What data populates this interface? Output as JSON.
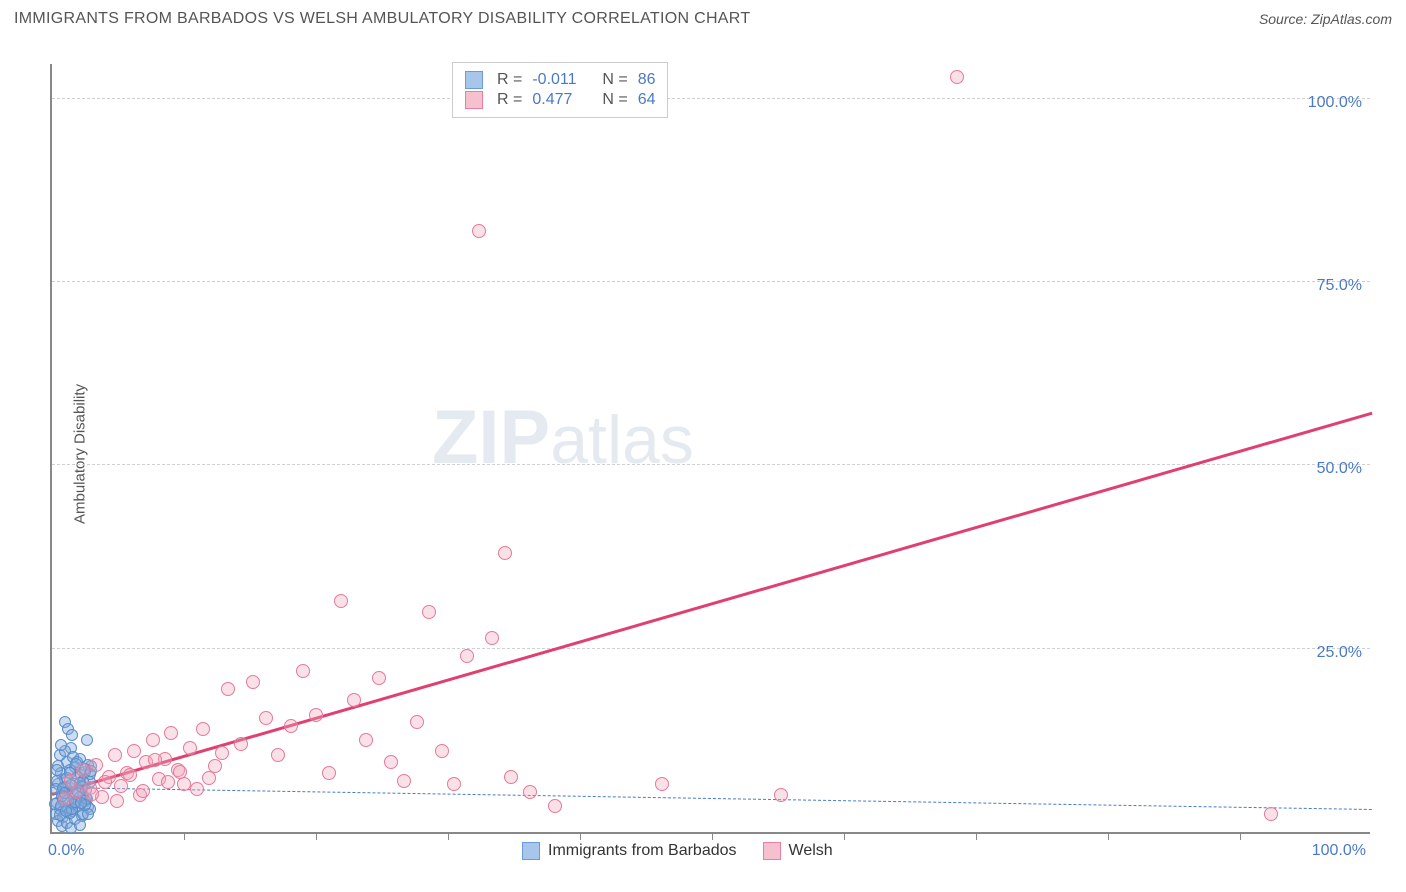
{
  "header": {
    "title": "IMMIGRANTS FROM BARBADOS VS WELSH AMBULATORY DISABILITY CORRELATION CHART",
    "source_prefix": "Source: ",
    "source": "ZipAtlas.com"
  },
  "chart": {
    "type": "scatter",
    "background_color": "#ffffff",
    "grid_color": "#d0d0d0",
    "axis_color": "#888888",
    "ylabel": "Ambulatory Disability",
    "ylabel_fontsize": 15,
    "tick_label_color": "#4a7ac7",
    "tick_fontsize": 16,
    "xlim": [
      0,
      105
    ],
    "ylim": [
      0,
      105
    ],
    "yticks": [
      25.0,
      50.0,
      75.0,
      100.0
    ],
    "ytick_labels": [
      "25.0%",
      "50.0%",
      "75.0%",
      "100.0%"
    ],
    "xtick_labels": {
      "left": "0.0%",
      "right": "100.0%"
    },
    "xticks_minor": [
      10.5,
      21,
      31.5,
      42,
      52.5,
      63,
      73.5,
      84,
      94.5
    ],
    "watermark": {
      "bold": "ZIP",
      "light": "atlas"
    },
    "legend_top": {
      "rows": [
        {
          "swatch_fill": "#a8c6ec",
          "swatch_border": "#6a9cd8",
          "r_label": "R =",
          "r_val": "-0.011",
          "n_label": "N =",
          "n_val": "86"
        },
        {
          "swatch_fill": "#f6c0ce",
          "swatch_border": "#e97fa0",
          "r_label": "R =",
          "r_val": "0.477",
          "n_label": "N =",
          "n_val": "64"
        }
      ]
    },
    "legend_bottom": [
      {
        "swatch_fill": "#a8c6ec",
        "swatch_border": "#6a9cd8",
        "label": "Immigrants from Barbados"
      },
      {
        "swatch_fill": "#f6c0ce",
        "swatch_border": "#e97fa0",
        "label": "Welsh"
      }
    ],
    "series": [
      {
        "name": "Immigrants from Barbados",
        "marker_fill": "rgba(130,170,220,0.4)",
        "marker_border": "#5a8cc8",
        "marker_size": 12,
        "trend": {
          "x1": 0,
          "y1": 6.0,
          "x2": 105,
          "y2": 3.0,
          "color": "#4a7ac7",
          "dash": true,
          "width": 1.5
        },
        "points": [
          [
            0.3,
            2.5
          ],
          [
            0.4,
            4.0
          ],
          [
            0.5,
            6.5
          ],
          [
            0.6,
            3.2
          ],
          [
            0.7,
            8.0
          ],
          [
            0.8,
            5.5
          ],
          [
            0.9,
            2.0
          ],
          [
            1.0,
            7.2
          ],
          [
            1.1,
            4.4
          ],
          [
            1.2,
            9.5
          ],
          [
            1.3,
            3.0
          ],
          [
            1.4,
            6.0
          ],
          [
            1.5,
            11.5
          ],
          [
            1.6,
            2.8
          ],
          [
            1.7,
            5.2
          ],
          [
            1.8,
            8.8
          ],
          [
            1.9,
            4.0
          ],
          [
            2.0,
            7.5
          ],
          [
            2.1,
            3.6
          ],
          [
            2.2,
            10.0
          ],
          [
            2.3,
            6.3
          ],
          [
            2.4,
            2.2
          ],
          [
            2.5,
            5.0
          ],
          [
            2.6,
            8.2
          ],
          [
            2.7,
            4.7
          ],
          [
            2.8,
            12.5
          ],
          [
            2.9,
            3.4
          ],
          [
            3.0,
            6.8
          ],
          [
            3.1,
            9.0
          ],
          [
            1.0,
            15.0
          ],
          [
            1.3,
            14.0
          ],
          [
            1.6,
            13.2
          ],
          [
            0.5,
            1.5
          ],
          [
            0.8,
            0.8
          ],
          [
            1.2,
            1.2
          ],
          [
            1.5,
            0.5
          ],
          [
            1.8,
            1.8
          ],
          [
            2.2,
            1.0
          ],
          [
            2.5,
            2.5
          ],
          [
            0.2,
            3.8
          ],
          [
            0.4,
            7.0
          ],
          [
            0.6,
            10.5
          ],
          [
            0.9,
            4.5
          ],
          [
            1.1,
            6.2
          ],
          [
            1.4,
            8.5
          ],
          [
            1.7,
            3.8
          ],
          [
            2.0,
            5.6
          ],
          [
            2.3,
            7.8
          ],
          [
            2.6,
            4.2
          ],
          [
            2.9,
            9.2
          ],
          [
            0.3,
            5.8
          ],
          [
            0.7,
            3.5
          ],
          [
            1.0,
            11.0
          ],
          [
            1.4,
            2.6
          ],
          [
            1.8,
            6.6
          ],
          [
            2.2,
            4.8
          ],
          [
            2.6,
            8.6
          ],
          [
            3.0,
            3.2
          ],
          [
            0.5,
            9.0
          ],
          [
            0.9,
            6.0
          ],
          [
            1.3,
            4.3
          ],
          [
            1.7,
            10.2
          ],
          [
            2.1,
            5.4
          ],
          [
            2.5,
            7.0
          ],
          [
            2.9,
            2.4
          ],
          [
            0.4,
            8.4
          ],
          [
            0.8,
            4.9
          ],
          [
            1.2,
            7.4
          ],
          [
            1.6,
            3.1
          ],
          [
            2.0,
            9.6
          ],
          [
            2.4,
            6.1
          ],
          [
            2.8,
            4.5
          ],
          [
            0.6,
            2.3
          ],
          [
            1.0,
            5.3
          ],
          [
            1.4,
            8.0
          ],
          [
            1.8,
            4.1
          ],
          [
            2.2,
            6.7
          ],
          [
            2.6,
            3.7
          ],
          [
            3.0,
            7.9
          ],
          [
            0.7,
            11.8
          ],
          [
            1.1,
            2.9
          ],
          [
            1.5,
            6.4
          ],
          [
            1.9,
            9.3
          ],
          [
            2.3,
            3.9
          ],
          [
            2.7,
            5.7
          ],
          [
            3.1,
            8.3
          ]
        ]
      },
      {
        "name": "Welsh",
        "marker_fill": "rgba(240,165,185,0.35)",
        "marker_border": "#e67a9a",
        "marker_size": 14,
        "trend": {
          "x1": 0,
          "y1": 5.0,
          "x2": 105,
          "y2": 57.0,
          "color": "#e04070",
          "dash": false,
          "width": 2.5
        },
        "points": [
          [
            1.0,
            4.5
          ],
          [
            1.5,
            7.0
          ],
          [
            2.0,
            5.5
          ],
          [
            2.5,
            8.5
          ],
          [
            3.0,
            6.0
          ],
          [
            3.5,
            9.2
          ],
          [
            4.0,
            4.8
          ],
          [
            4.5,
            7.5
          ],
          [
            5.0,
            10.5
          ],
          [
            5.5,
            6.3
          ],
          [
            6.0,
            8.0
          ],
          [
            6.5,
            11.0
          ],
          [
            7.0,
            5.0
          ],
          [
            7.5,
            9.5
          ],
          [
            8.0,
            12.5
          ],
          [
            8.5,
            7.2
          ],
          [
            9.0,
            10.0
          ],
          [
            9.5,
            13.5
          ],
          [
            10.0,
            8.4
          ],
          [
            10.5,
            6.5
          ],
          [
            11.0,
            11.5
          ],
          [
            12.0,
            14.0
          ],
          [
            13.0,
            9.0
          ],
          [
            14.0,
            19.5
          ],
          [
            15.0,
            12.0
          ],
          [
            16.0,
            20.5
          ],
          [
            17.0,
            15.5
          ],
          [
            18.0,
            10.5
          ],
          [
            19.0,
            14.5
          ],
          [
            20.0,
            22.0
          ],
          [
            21.0,
            16.0
          ],
          [
            22.0,
            8.0
          ],
          [
            23.0,
            31.5
          ],
          [
            24.0,
            18.0
          ],
          [
            25.0,
            12.5
          ],
          [
            26.0,
            21.0
          ],
          [
            27.0,
            9.5
          ],
          [
            28.0,
            7.0
          ],
          [
            29.0,
            15.0
          ],
          [
            30.0,
            30.0
          ],
          [
            31.0,
            11.0
          ],
          [
            32.0,
            6.5
          ],
          [
            33.0,
            24.0
          ],
          [
            34.0,
            82.0
          ],
          [
            35.0,
            26.5
          ],
          [
            36.0,
            38.0
          ],
          [
            36.5,
            7.5
          ],
          [
            38.0,
            5.5
          ],
          [
            40.0,
            3.5
          ],
          [
            48.5,
            6.5
          ],
          [
            58.0,
            5.0
          ],
          [
            72.0,
            103.0
          ],
          [
            97.0,
            2.5
          ],
          [
            3.2,
            5.2
          ],
          [
            4.2,
            6.8
          ],
          [
            5.2,
            4.2
          ],
          [
            6.2,
            7.8
          ],
          [
            7.2,
            5.6
          ],
          [
            8.2,
            9.8
          ],
          [
            9.2,
            6.8
          ],
          [
            10.2,
            8.2
          ],
          [
            11.5,
            5.8
          ],
          [
            12.5,
            7.4
          ],
          [
            13.5,
            10.8
          ]
        ]
      }
    ]
  }
}
